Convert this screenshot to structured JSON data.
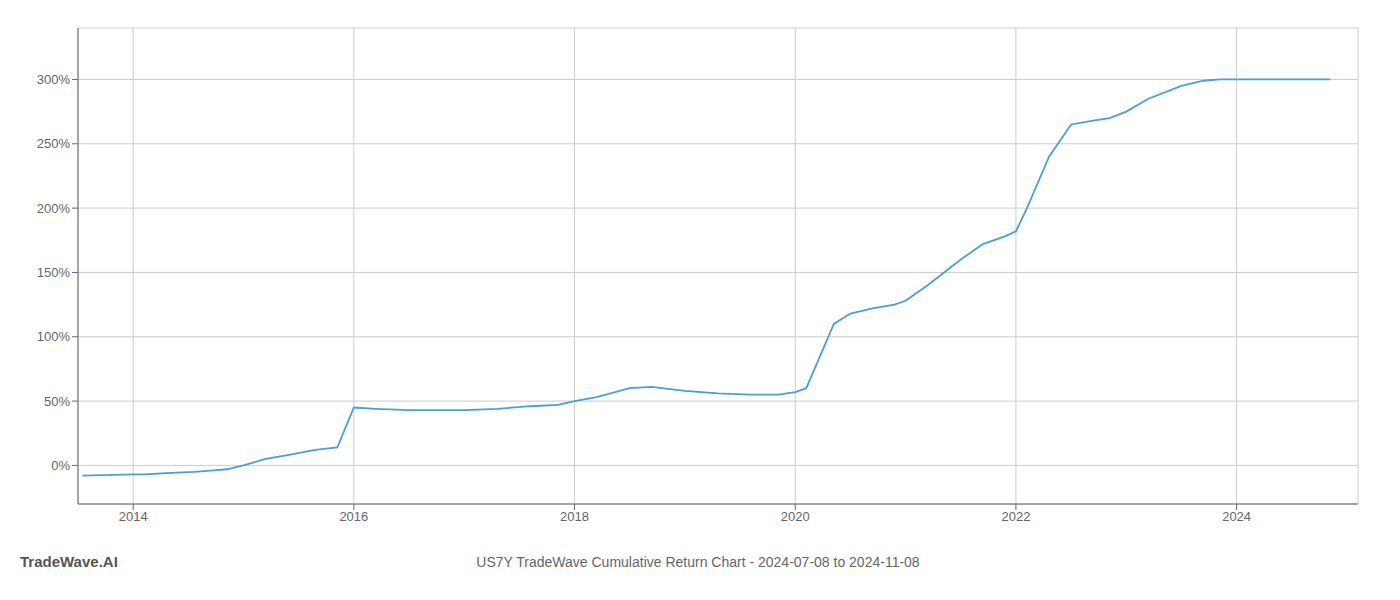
{
  "chart_data": {
    "type": "line",
    "title": "US7Y TradeWave Cumulative Return Chart - 2024-07-08 to 2024-11-08",
    "annotations": [
      "TradeWave.AI"
    ],
    "color": "#4a9fd4",
    "grid": true,
    "x": [
      2013.54,
      2014.0,
      2014.1,
      2014.3,
      2014.55,
      2014.7,
      2014.85,
      2015.0,
      2015.2,
      2015.4,
      2015.65,
      2015.85,
      2016.0,
      2016.2,
      2016.5,
      2016.8,
      2017.0,
      2017.3,
      2017.6,
      2017.85,
      2018.0,
      2018.2,
      2018.5,
      2018.7,
      2019.0,
      2019.3,
      2019.6,
      2019.85,
      2020.0,
      2020.1,
      2020.2,
      2020.35,
      2020.5,
      2020.7,
      2020.9,
      2021.0,
      2021.2,
      2021.5,
      2021.7,
      2021.9,
      2022.0,
      2022.1,
      2022.3,
      2022.5,
      2022.7,
      2022.85,
      2023.0,
      2023.2,
      2023.5,
      2023.7,
      2023.85,
      2024.0,
      2024.3,
      2024.6,
      2024.85
    ],
    "values": [
      -8,
      -7,
      -7,
      -6,
      -5,
      -4,
      -3,
      0,
      5,
      8,
      12,
      14,
      45,
      44,
      43,
      43,
      43,
      44,
      46,
      47,
      50,
      53,
      60,
      61,
      58,
      56,
      55,
      55,
      57,
      60,
      80,
      110,
      118,
      122,
      125,
      128,
      140,
      160,
      172,
      178,
      182,
      200,
      240,
      265,
      268,
      270,
      275,
      285,
      295,
      299,
      300,
      300,
      300,
      300,
      300
    ],
    "xlim": [
      2013.5,
      2025.1
    ],
    "ylim": [
      -30,
      340
    ],
    "xticks": [
      2014,
      2016,
      2018,
      2020,
      2022,
      2024
    ],
    "yticks": [
      {
        "value": 0,
        "label": "0%"
      },
      {
        "value": 50,
        "label": "50%"
      },
      {
        "value": 100,
        "label": "100%"
      },
      {
        "value": 150,
        "label": "150%"
      },
      {
        "value": 200,
        "label": "200%"
      },
      {
        "value": 250,
        "label": "250%"
      },
      {
        "value": 300,
        "label": "300%"
      }
    ]
  }
}
